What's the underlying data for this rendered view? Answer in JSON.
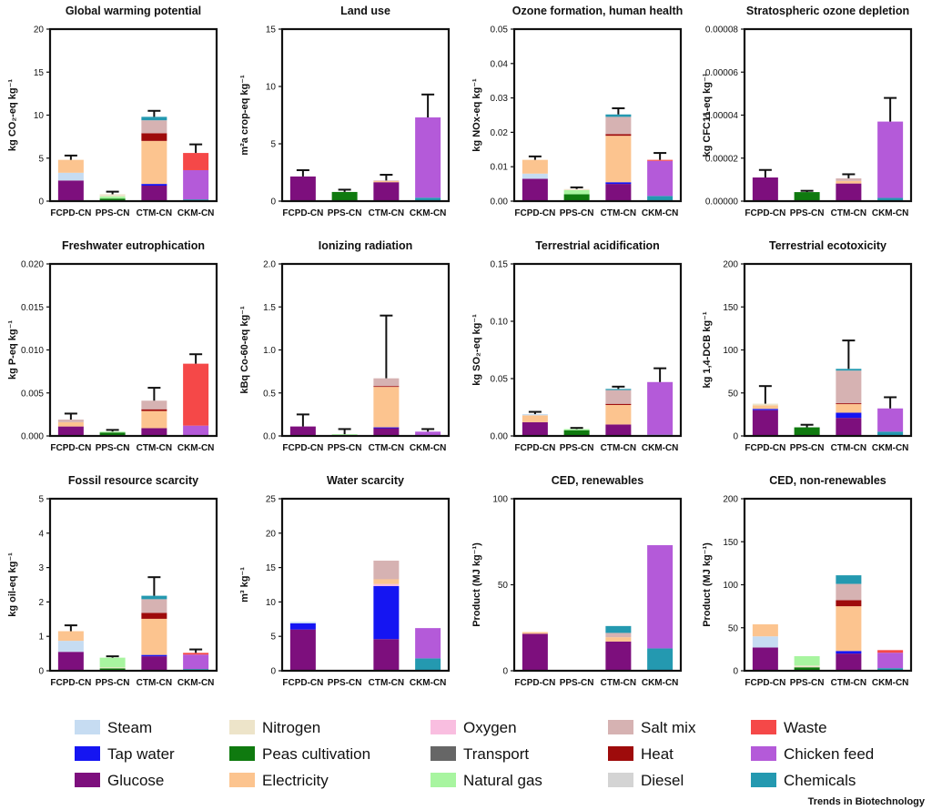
{
  "colors": {
    "Steam": "#c6dcf2",
    "Tap water": "#1515f2",
    "Glucose": "#7d0f7d",
    "Nitrogen": "#ede4c9",
    "Peas cultivation": "#0f7a0f",
    "Electricity": "#fcc48f",
    "Oxygen": "#f9bee0",
    "Transport": "#666666",
    "Natural gas": "#a8f5a0",
    "Salt mix": "#d6b2b2",
    "Heat": "#9e0b0b",
    "Diesel": "#d4d4d4",
    "Waste": "#f54848",
    "Chicken feed": "#b45ad9",
    "Chemicals": "#2499b0"
  },
  "legend": {
    "columns": [
      [
        "Steam",
        "Tap water",
        "Glucose"
      ],
      [
        "Nitrogen",
        "Peas cultivation",
        "Electricity"
      ],
      [
        "Oxygen",
        "Transport",
        "Natural gas"
      ],
      [
        "Salt mix",
        "Heat",
        "Diesel"
      ],
      [
        "Waste",
        "Chicken feed",
        "Chemicals"
      ]
    ]
  },
  "credit": "Trends in Biotechnology",
  "chart_data": [
    {
      "type": "bar",
      "stacked": true,
      "title": "Global warming potential",
      "ylabel": "kg CO₂-eq kg⁻¹",
      "ylim": [
        0,
        20
      ],
      "yticks": [
        "0",
        "5",
        "10",
        "15",
        "20"
      ],
      "categories": [
        "FCPD-CN",
        "PPS-CN",
        "CTM-CN",
        "CKM-CN"
      ],
      "bars": [
        {
          "error": 5.3,
          "segments": [
            [
              "Glucose",
              2.4
            ],
            [
              "Steam",
              0.9
            ],
            [
              "Electricity",
              1.5
            ]
          ]
        },
        {
          "error": 1.1,
          "segments": [
            [
              "Peas cultivation",
              0.3
            ],
            [
              "Natural gas",
              0.25
            ],
            [
              "Nitrogen",
              0.25
            ]
          ]
        },
        {
          "error": 10.5,
          "segments": [
            [
              "Glucose",
              1.8
            ],
            [
              "Tap water",
              0.2
            ],
            [
              "Electricity",
              5.0
            ],
            [
              "Heat",
              0.9
            ],
            [
              "Salt mix",
              1.5
            ],
            [
              "Chemicals",
              0.4
            ]
          ]
        },
        {
          "error": 6.6,
          "segments": [
            [
              "Chemicals",
              0.2
            ],
            [
              "Chicken feed",
              3.4
            ],
            [
              "Waste",
              2.0
            ]
          ]
        }
      ]
    },
    {
      "type": "bar",
      "stacked": true,
      "title": "Land use",
      "ylabel": "m²a crop-eq kg⁻¹",
      "ylim": [
        0,
        15
      ],
      "yticks": [
        "0",
        "5",
        "10",
        "15"
      ],
      "categories": [
        "FCPD-CN",
        "PPS-CN",
        "CTM-CN",
        "CKM-CN"
      ],
      "bars": [
        {
          "error": 2.7,
          "segments": [
            [
              "Glucose",
              2.15
            ]
          ]
        },
        {
          "error": 1.0,
          "segments": [
            [
              "Peas cultivation",
              0.8
            ]
          ]
        },
        {
          "error": 2.3,
          "segments": [
            [
              "Glucose",
              1.65
            ],
            [
              "Electricity",
              0.1
            ],
            [
              "Salt mix",
              0.05
            ]
          ]
        },
        {
          "error": 9.3,
          "segments": [
            [
              "Chemicals",
              0.3
            ],
            [
              "Chicken feed",
              7.0
            ]
          ]
        }
      ]
    },
    {
      "type": "bar",
      "stacked": true,
      "title": "Ozone formation, human health",
      "ylabel": "kg NOx-eq kg⁻¹",
      "ylim": [
        0,
        0.05
      ],
      "yticks": [
        "0.00",
        "0.01",
        "0.02",
        "0.03",
        "0.04",
        "0.05"
      ],
      "categories": [
        "FCPD-CN",
        "PPS-CN",
        "CTM-CN",
        "CKM-CN"
      ],
      "bars": [
        {
          "error": 0.013,
          "segments": [
            [
              "Glucose",
              0.0065
            ],
            [
              "Steam",
              0.0015
            ],
            [
              "Electricity",
              0.004
            ]
          ]
        },
        {
          "error": 0.004,
          "segments": [
            [
              "Peas cultivation",
              0.002
            ],
            [
              "Natural gas",
              0.0012
            ],
            [
              "Nitrogen",
              0.0003
            ]
          ]
        },
        {
          "error": 0.027,
          "segments": [
            [
              "Glucose",
              0.005
            ],
            [
              "Tap water",
              0.0005
            ],
            [
              "Electricity",
              0.0135
            ],
            [
              "Heat",
              0.0005
            ],
            [
              "Salt mix",
              0.005
            ],
            [
              "Chemicals",
              0.0007
            ]
          ]
        },
        {
          "error": 0.014,
          "segments": [
            [
              "Chemicals",
              0.0015
            ],
            [
              "Chicken feed",
              0.0102
            ],
            [
              "Waste",
              0.0003
            ]
          ]
        }
      ]
    },
    {
      "type": "bar",
      "stacked": true,
      "title": "Stratospheric ozone depletion",
      "ylabel": "kg CFC11-eq kg⁻¹",
      "ylim": [
        0,
        8e-05
      ],
      "yticks": [
        "0.00000",
        "0.00002",
        "0.00004",
        "0.00006",
        "0.00008"
      ],
      "categories": [
        "FCPD-CN",
        "PPS-CN",
        "CTM-CN",
        "CKM-CN"
      ],
      "bars": [
        {
          "error": 1.45e-05,
          "segments": [
            [
              "Glucose",
              1.1e-05
            ]
          ]
        },
        {
          "error": 4.8e-06,
          "segments": [
            [
              "Peas cultivation",
              4.2e-06
            ]
          ]
        },
        {
          "error": 1.25e-05,
          "segments": [
            [
              "Glucose",
              8.2e-06
            ],
            [
              "Electricity",
              1.2e-06
            ],
            [
              "Salt mix",
              1.2e-06
            ]
          ]
        },
        {
          "error": 4.8e-05,
          "segments": [
            [
              "Chemicals",
              1.5e-06
            ],
            [
              "Chicken feed",
              3.55e-05
            ]
          ]
        }
      ]
    },
    {
      "type": "bar",
      "stacked": true,
      "title": "Freshwater eutrophication",
      "ylabel": "kg P-eq kg⁻¹",
      "ylim": [
        0,
        0.02
      ],
      "yticks": [
        "0.000",
        "0.005",
        "0.010",
        "0.015",
        "0.020"
      ],
      "categories": [
        "FCPD-CN",
        "PPS-CN",
        "CTM-CN",
        "CKM-CN"
      ],
      "bars": [
        {
          "error": 0.0026,
          "segments": [
            [
              "Glucose",
              0.0011
            ],
            [
              "Electricity",
              0.0005
            ],
            [
              "Salt mix",
              0.0003
            ]
          ]
        },
        {
          "error": 0.0007,
          "segments": [
            [
              "Peas cultivation",
              0.0004
            ],
            [
              "Natural gas",
              0.0001
            ]
          ]
        },
        {
          "error": 0.0056,
          "segments": [
            [
              "Glucose",
              0.0009
            ],
            [
              "Electricity",
              0.002
            ],
            [
              "Heat",
              0.0002
            ],
            [
              "Salt mix",
              0.001
            ]
          ]
        },
        {
          "error": 0.0095,
          "segments": [
            [
              "Chicken feed",
              0.0012
            ],
            [
              "Waste",
              0.0072
            ]
          ]
        }
      ]
    },
    {
      "type": "bar",
      "stacked": true,
      "title": "Ionizing radiation",
      "ylabel": "kBq Co-60-eq kg⁻¹",
      "ylim": [
        0,
        2.0
      ],
      "yticks": [
        "0.0",
        "0.5",
        "1.0",
        "1.5",
        "2.0"
      ],
      "categories": [
        "FCPD-CN",
        "PPS-CN",
        "CTM-CN",
        "CKM-CN"
      ],
      "bars": [
        {
          "error": 0.25,
          "segments": [
            [
              "Glucose",
              0.11
            ]
          ]
        },
        {
          "error": 0.08,
          "segments": [
            [
              "Natural gas",
              0.02
            ]
          ]
        },
        {
          "error": 1.4,
          "segments": [
            [
              "Glucose",
              0.09
            ],
            [
              "Tap water",
              0.01
            ],
            [
              "Electricity",
              0.47
            ],
            [
              "Heat",
              0.01
            ],
            [
              "Salt mix",
              0.09
            ]
          ]
        },
        {
          "error": 0.08,
          "segments": [
            [
              "Chicken feed",
              0.05
            ]
          ]
        }
      ]
    },
    {
      "type": "bar",
      "stacked": true,
      "title": "Terrestrial acidification",
      "ylabel": "kg SO₂-eq kg⁻¹",
      "ylim": [
        0,
        0.15
      ],
      "yticks": [
        "0.00",
        "0.05",
        "0.10",
        "0.15"
      ],
      "categories": [
        "FCPD-CN",
        "PPS-CN",
        "CTM-CN",
        "CKM-CN"
      ],
      "bars": [
        {
          "error": 0.021,
          "segments": [
            [
              "Glucose",
              0.012
            ],
            [
              "Electricity",
              0.006
            ],
            [
              "Steam",
              0.001
            ]
          ]
        },
        {
          "error": 0.007,
          "segments": [
            [
              "Peas cultivation",
              0.005
            ],
            [
              "Natural gas",
              0.001
            ]
          ]
        },
        {
          "error": 0.043,
          "segments": [
            [
              "Glucose",
              0.01
            ],
            [
              "Electricity",
              0.017
            ],
            [
              "Heat",
              0.001
            ],
            [
              "Salt mix",
              0.012
            ],
            [
              "Chemicals",
              0.001
            ]
          ]
        },
        {
          "error": 0.059,
          "segments": [
            [
              "Chemicals",
              0.001
            ],
            [
              "Chicken feed",
              0.046
            ]
          ]
        }
      ]
    },
    {
      "type": "bar",
      "stacked": true,
      "title": "Terrestrial ecotoxicity",
      "ylabel": "kg 1,4-DCB kg⁻¹",
      "ylim": [
        0,
        200
      ],
      "yticks": [
        "0",
        "50",
        "100",
        "150",
        "200"
      ],
      "categories": [
        "FCPD-CN",
        "PPS-CN",
        "CTM-CN",
        "CKM-CN"
      ],
      "bars": [
        {
          "error": 58,
          "segments": [
            [
              "Glucose",
              30
            ],
            [
              "Tap water",
              1.5
            ],
            [
              "Electricity",
              4
            ],
            [
              "Nitrogen",
              2
            ]
          ]
        },
        {
          "error": 13,
          "segments": [
            [
              "Peas cultivation",
              10
            ]
          ]
        },
        {
          "error": 111,
          "segments": [
            [
              "Glucose",
              21
            ],
            [
              "Tap water",
              6
            ],
            [
              "Electricity",
              10
            ],
            [
              "Heat",
              1
            ],
            [
              "Salt mix",
              38
            ],
            [
              "Chemicals",
              2
            ]
          ]
        },
        {
          "error": 45,
          "segments": [
            [
              "Chemicals",
              5
            ],
            [
              "Chicken feed",
              27
            ]
          ]
        }
      ]
    },
    {
      "type": "bar",
      "stacked": true,
      "title": "Fossil resource scarcity",
      "ylabel": "kg oil-eq kg⁻¹",
      "ylim": [
        0,
        5
      ],
      "yticks": [
        "0",
        "1",
        "2",
        "3",
        "4",
        "5"
      ],
      "categories": [
        "FCPD-CN",
        "PPS-CN",
        "CTM-CN",
        "CKM-CN"
      ],
      "bars": [
        {
          "error": 1.32,
          "segments": [
            [
              "Glucose",
              0.55
            ],
            [
              "Steam",
              0.32
            ],
            [
              "Electricity",
              0.28
            ]
          ]
        },
        {
          "error": 0.42,
          "segments": [
            [
              "Peas cultivation",
              0.07
            ],
            [
              "Nitrogen",
              0.03
            ],
            [
              "Natural gas",
              0.28
            ]
          ]
        },
        {
          "error": 2.72,
          "segments": [
            [
              "Glucose",
              0.42
            ],
            [
              "Tap water",
              0.04
            ],
            [
              "Electricity",
              1.05
            ],
            [
              "Heat",
              0.17
            ],
            [
              "Salt mix",
              0.4
            ],
            [
              "Chemicals",
              0.1
            ]
          ]
        },
        {
          "error": 0.62,
          "segments": [
            [
              "Chemicals",
              0.05
            ],
            [
              "Chicken feed",
              0.42
            ],
            [
              "Waste",
              0.05
            ]
          ]
        }
      ]
    },
    {
      "type": "bar",
      "stacked": true,
      "title": "Water scarcity",
      "ylabel": "m³ kg⁻¹",
      "ylim": [
        0,
        25
      ],
      "yticks": [
        "0",
        "5",
        "10",
        "15",
        "20",
        "25"
      ],
      "categories": [
        "FCPD-CN",
        "PPS-CN",
        "CTM-CN",
        "CKM-CN"
      ],
      "bars": [
        {
          "segments": [
            [
              "Glucose",
              6.0
            ],
            [
              "Tap water",
              0.9
            ],
            [
              "Steam",
              0.2
            ]
          ]
        },
        {
          "segments": [
            [
              "Peas cultivation",
              0.1
            ]
          ]
        },
        {
          "segments": [
            [
              "Glucose",
              4.6
            ],
            [
              "Tap water",
              7.7
            ],
            [
              "Oxygen",
              0.3
            ],
            [
              "Electricity",
              0.7
            ],
            [
              "Salt mix",
              2.7
            ]
          ]
        },
        {
          "segments": [
            [
              "Chemicals",
              1.8
            ],
            [
              "Chicken feed",
              4.4
            ]
          ]
        }
      ]
    },
    {
      "type": "bar",
      "stacked": true,
      "title": "CED, renewables",
      "ylabel": "Product (MJ kg⁻¹)",
      "ylim": [
        0,
        100
      ],
      "yticks": [
        "0",
        "50",
        "100"
      ],
      "categories": [
        "FCPD-CN",
        "PPS-CN",
        "CTM-CN",
        "CKM-CN"
      ],
      "bars": [
        {
          "segments": [
            [
              "Glucose",
              21.5
            ],
            [
              "Electricity",
              1
            ]
          ]
        },
        {
          "segments": []
        },
        {
          "segments": [
            [
              "Glucose",
              17
            ],
            [
              "Electricity",
              2.5
            ],
            [
              "Salt mix",
              2.5
            ],
            [
              "Chemicals",
              4
            ]
          ]
        },
        {
          "segments": [
            [
              "Chemicals",
              13
            ],
            [
              "Chicken feed",
              60
            ]
          ]
        }
      ]
    },
    {
      "type": "bar",
      "stacked": true,
      "title": "CED, non-renewables",
      "ylabel": "Product (MJ kg⁻¹)",
      "ylim": [
        0,
        200
      ],
      "yticks": [
        "0",
        "50",
        "100",
        "150",
        "200"
      ],
      "categories": [
        "FCPD-CN",
        "PPS-CN",
        "CTM-CN",
        "CKM-CN"
      ],
      "bars": [
        {
          "segments": [
            [
              "Glucose",
              27
            ],
            [
              "Steam",
              13
            ],
            [
              "Electricity",
              14
            ]
          ]
        },
        {
          "segments": [
            [
              "Peas cultivation",
              4
            ],
            [
              "Nitrogen",
              2
            ],
            [
              "Natural gas",
              11
            ]
          ]
        },
        {
          "segments": [
            [
              "Glucose",
              20
            ],
            [
              "Tap water",
              3
            ],
            [
              "Electricity",
              52
            ],
            [
              "Heat",
              7
            ],
            [
              "Salt mix",
              19
            ],
            [
              "Chemicals",
              10
            ]
          ]
        },
        {
          "segments": [
            [
              "Chemicals",
              3
            ],
            [
              "Chicken feed",
              18
            ],
            [
              "Waste",
              3
            ]
          ]
        }
      ]
    }
  ]
}
